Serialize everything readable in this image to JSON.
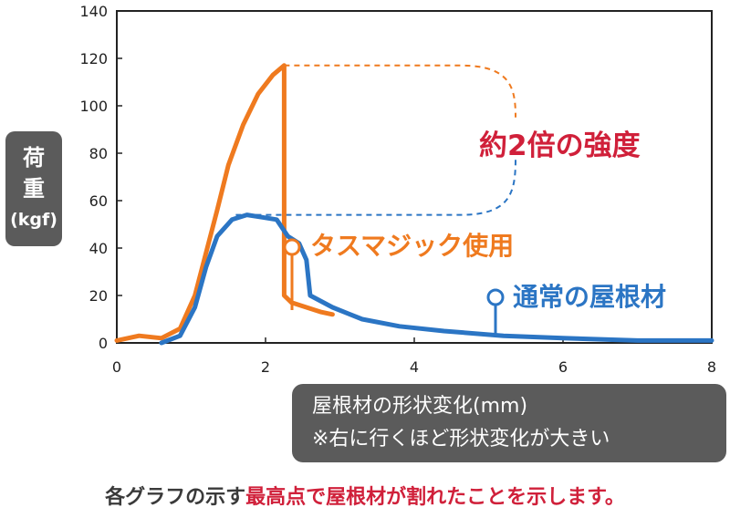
{
  "ylabel": {
    "line1": "荷",
    "line2": "重",
    "unit": "(kgf)"
  },
  "xlabel": {
    "line1": "屋根材の形状変化(mm)",
    "line2": "※右に行くほど形状変化が大きい"
  },
  "annotations": {
    "ratio": "約2倍の強度",
    "orange_series": "タスマジック使用",
    "blue_series": "通常の屋根材"
  },
  "footnote": {
    "part1": "各グラフの示す",
    "part2": "最高点で屋根材が割れたことを示します。"
  },
  "colors": {
    "orange": "#ef7a1f",
    "blue": "#2b75c4",
    "highlight": "#d0203a",
    "label_box": "#5b5b5b"
  },
  "chart_data": {
    "type": "line",
    "xlim": [
      0,
      8
    ],
    "ylim": [
      0,
      140
    ],
    "xticks": [
      0,
      2,
      4,
      6,
      8
    ],
    "yticks": [
      0,
      20,
      40,
      60,
      80,
      100,
      120,
      140
    ],
    "grid": false,
    "series": [
      {
        "name": "タスマジック使用",
        "color": "#ef7a1f",
        "points": [
          [
            0,
            1
          ],
          [
            0.3,
            3
          ],
          [
            0.6,
            2
          ],
          [
            0.85,
            6
          ],
          [
            1.05,
            20
          ],
          [
            1.2,
            38
          ],
          [
            1.35,
            56
          ],
          [
            1.5,
            75
          ],
          [
            1.7,
            92
          ],
          [
            1.9,
            105
          ],
          [
            2.1,
            113
          ],
          [
            2.25,
            117
          ],
          [
            2.25,
            20
          ],
          [
            2.35,
            17
          ],
          [
            2.55,
            15
          ],
          [
            2.75,
            13
          ],
          [
            2.9,
            12
          ]
        ]
      },
      {
        "name": "通常の屋根材",
        "color": "#2b75c4",
        "points": [
          [
            0.6,
            0
          ],
          [
            0.85,
            3
          ],
          [
            1.05,
            15
          ],
          [
            1.2,
            32
          ],
          [
            1.35,
            45
          ],
          [
            1.55,
            52
          ],
          [
            1.75,
            54
          ],
          [
            1.95,
            53
          ],
          [
            2.15,
            52
          ],
          [
            2.3,
            45
          ],
          [
            2.45,
            42
          ],
          [
            2.55,
            35
          ],
          [
            2.6,
            20
          ],
          [
            2.9,
            15
          ],
          [
            3.3,
            10
          ],
          [
            3.8,
            7
          ],
          [
            4.4,
            5
          ],
          [
            5.2,
            3
          ],
          [
            6.0,
            2
          ],
          [
            7.0,
            1
          ],
          [
            8.0,
            1
          ]
        ]
      }
    ],
    "guides": [
      {
        "color": "#ef7a1f",
        "level": 117
      },
      {
        "color": "#2b75c4",
        "level": 54
      }
    ]
  }
}
